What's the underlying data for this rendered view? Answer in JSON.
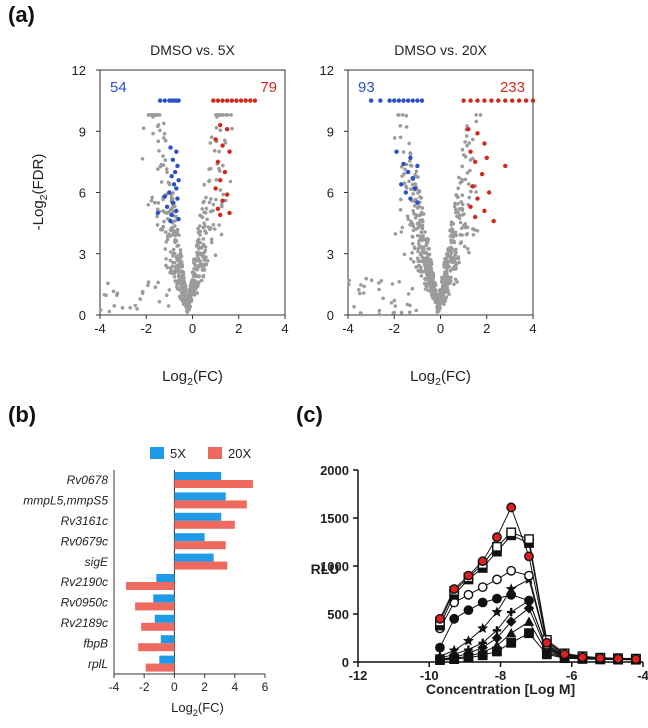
{
  "panels": {
    "a": "(a)",
    "b": "(b)",
    "c": "(c)"
  },
  "chart_data": [
    {
      "type": "scatter",
      "panel": "a",
      "title": "DMSO vs. 5X",
      "xlabel": "Log2(FC)",
      "ylabel": "-Log2(FDR)",
      "xlim": [
        -4,
        4
      ],
      "ylim": [
        0,
        12
      ],
      "xticks": [
        "-4",
        "-2",
        "0",
        "2",
        "4"
      ],
      "yticks": [
        "0",
        "3",
        "6",
        "9",
        "12"
      ],
      "down_count": "54",
      "up_count": "79",
      "colors": {
        "down": "#2b50c8",
        "up": "#d0291c",
        "ns": "#9b9b9b"
      },
      "down_points": [
        [
          -1.4,
          10.5
        ],
        [
          -1.2,
          10.5
        ],
        [
          -1.0,
          10.5
        ],
        [
          -0.9,
          10.5
        ],
        [
          -0.8,
          10.5
        ],
        [
          -0.7,
          10.5
        ],
        [
          -0.6,
          10.5
        ],
        [
          -0.95,
          8.2
        ],
        [
          -0.7,
          8.0
        ],
        [
          -0.85,
          7.6
        ],
        [
          -0.65,
          7.3
        ],
        [
          -0.75,
          7.0
        ],
        [
          -0.9,
          6.8
        ],
        [
          -0.6,
          6.6
        ],
        [
          -0.8,
          6.4
        ],
        [
          -0.7,
          6.2
        ],
        [
          -1.0,
          6.0
        ],
        [
          -1.2,
          5.8
        ],
        [
          -0.65,
          5.7
        ],
        [
          -0.85,
          5.5
        ],
        [
          -1.1,
          5.3
        ],
        [
          -0.7,
          5.1
        ],
        [
          -1.5,
          5.0
        ],
        [
          -0.9,
          4.9
        ],
        [
          -0.6,
          4.7
        ],
        [
          -0.95,
          4.6
        ]
      ],
      "up_points": [
        [
          0.9,
          10.5
        ],
        [
          1.1,
          10.5
        ],
        [
          1.3,
          10.5
        ],
        [
          1.5,
          10.5
        ],
        [
          1.7,
          10.5
        ],
        [
          1.9,
          10.5
        ],
        [
          2.1,
          10.5
        ],
        [
          2.3,
          10.5
        ],
        [
          2.5,
          10.5
        ],
        [
          2.7,
          10.5
        ],
        [
          1.2,
          9.3
        ],
        [
          1.5,
          9.1
        ],
        [
          1.0,
          8.6
        ],
        [
          1.3,
          8.3
        ],
        [
          1.6,
          8.0
        ],
        [
          1.1,
          7.5
        ],
        [
          1.4,
          7.0
        ],
        [
          1.2,
          6.6
        ],
        [
          1.0,
          6.2
        ],
        [
          1.5,
          5.9
        ],
        [
          1.3,
          5.6
        ],
        [
          1.1,
          5.2
        ],
        [
          1.6,
          5.0
        ],
        [
          1.2,
          4.9
        ]
      ],
      "ns_shape": {
        "x0": -0.2,
        "k": 3.6,
        "vmax": 9.8,
        "seed": 7,
        "n": 520
      }
    },
    {
      "type": "scatter",
      "panel": "a",
      "title": "DMSO vs. 20X",
      "xlabel": "Log2(FC)",
      "ylabel": "",
      "xlim": [
        -4,
        4
      ],
      "ylim": [
        0,
        12
      ],
      "xticks": [
        "-4",
        "-2",
        "0",
        "2",
        "4"
      ],
      "yticks": [
        "0",
        "3",
        "6",
        "9",
        "12"
      ],
      "down_count": "93",
      "up_count": "233",
      "colors": {
        "down": "#2b50c8",
        "up": "#d0291c",
        "ns": "#9b9b9b"
      },
      "down_points": [
        [
          -3.0,
          10.5
        ],
        [
          -2.6,
          10.5
        ],
        [
          -2.2,
          10.5
        ],
        [
          -2.0,
          10.5
        ],
        [
          -1.8,
          10.5
        ],
        [
          -1.6,
          10.5
        ],
        [
          -1.4,
          10.5
        ],
        [
          -1.2,
          10.5
        ],
        [
          -1.0,
          10.5
        ],
        [
          -0.8,
          10.5
        ],
        [
          -1.9,
          8.0
        ],
        [
          -1.3,
          7.7
        ],
        [
          -1.6,
          7.4
        ],
        [
          -1.0,
          7.3
        ],
        [
          -1.4,
          7.0
        ],
        [
          -1.2,
          6.7
        ],
        [
          -1.7,
          6.4
        ],
        [
          -1.1,
          6.2
        ],
        [
          -1.5,
          6.0
        ],
        [
          -1.3,
          5.7
        ],
        [
          -1.0,
          5.5
        ]
      ],
      "up_points": [
        [
          1.0,
          10.5
        ],
        [
          1.3,
          10.5
        ],
        [
          1.6,
          10.5
        ],
        [
          1.9,
          10.5
        ],
        [
          2.2,
          10.5
        ],
        [
          2.5,
          10.5
        ],
        [
          2.8,
          10.5
        ],
        [
          3.1,
          10.5
        ],
        [
          3.4,
          10.5
        ],
        [
          3.7,
          10.5
        ],
        [
          4.0,
          10.5
        ],
        [
          1.2,
          9.1
        ],
        [
          1.6,
          8.9
        ],
        [
          1.9,
          8.4
        ],
        [
          1.3,
          8.0
        ],
        [
          2.0,
          7.7
        ],
        [
          2.8,
          7.3
        ],
        [
          1.5,
          7.5
        ],
        [
          1.8,
          6.9
        ],
        [
          1.4,
          6.3
        ],
        [
          2.1,
          6.0
        ],
        [
          1.6,
          5.7
        ],
        [
          1.3,
          5.3
        ],
        [
          1.9,
          5.1
        ],
        [
          1.5,
          4.8
        ],
        [
          2.3,
          4.6
        ]
      ],
      "ns_shape": {
        "x0": -0.1,
        "k": 3.0,
        "vmax": 9.8,
        "seed": 13,
        "n": 620
      }
    },
    {
      "type": "bar",
      "orientation": "horizontal",
      "panel": "b",
      "xlabel": "Log2(FC)",
      "xlim": [
        -4,
        6
      ],
      "xticks": [
        "-4",
        "-2",
        "0",
        "2",
        "4",
        "6"
      ],
      "categories": [
        "Rv0678",
        "mmpL5,mmpS5",
        "Rv3161c",
        "Rv0679c",
        "sigE",
        "Rv2190c",
        "Rv0950c",
        "Rv2189c",
        "fbpB",
        "rplL"
      ],
      "series": [
        {
          "name": "5X",
          "color": "#1e9ae6",
          "values": [
            3.1,
            3.4,
            3.1,
            2.0,
            2.6,
            -1.2,
            -1.4,
            -1.3,
            -0.9,
            -1.0
          ]
        },
        {
          "name": "20X",
          "color": "#ee6a5e",
          "values": [
            5.2,
            4.8,
            4.0,
            3.4,
            3.5,
            -3.2,
            -2.6,
            -2.2,
            -2.4,
            -1.9
          ]
        }
      ]
    },
    {
      "type": "line",
      "panel": "c",
      "xlabel": "Concentration [Log M]",
      "ylabel": "RLU",
      "xlim": [
        -12,
        -4
      ],
      "ylim": [
        0,
        2000
      ],
      "xticks": [
        "-12",
        "-10",
        "-8",
        "-6",
        "-4"
      ],
      "yticks": [
        "0",
        "500",
        "1000",
        "1500",
        "2000"
      ],
      "x": [
        -9.7,
        -9.3,
        -8.9,
        -8.5,
        -8.1,
        -7.7,
        -7.2,
        -6.7,
        -6.2,
        -5.7,
        -5.2,
        -4.7,
        -4.2
      ],
      "series": [
        {
          "name": "red-circle",
          "marker": "circle",
          "fill": "#e02020",
          "values": [
            450,
            760,
            900,
            1050,
            1300,
            1610,
            1100,
            200,
            80,
            50,
            40,
            35,
            30
          ]
        },
        {
          "name": "open-square",
          "marker": "square",
          "fill": "#ffffff",
          "values": [
            420,
            740,
            880,
            1020,
            1200,
            1350,
            1280,
            230,
            90,
            60,
            45,
            40,
            35
          ]
        },
        {
          "name": "black-square",
          "marker": "square",
          "fill": "#111111",
          "values": [
            380,
            700,
            860,
            980,
            1150,
            1320,
            1240,
            210,
            80,
            55,
            40,
            35,
            30
          ]
        },
        {
          "name": "open-circle",
          "marker": "circle",
          "fill": "#ffffff",
          "values": [
            350,
            620,
            700,
            780,
            860,
            950,
            900,
            180,
            70,
            50,
            40,
            35,
            30
          ]
        },
        {
          "name": "black-circle",
          "marker": "circle",
          "fill": "#111111",
          "values": [
            150,
            450,
            540,
            620,
            660,
            700,
            640,
            150,
            60,
            45,
            35,
            30,
            30
          ]
        },
        {
          "name": "star",
          "marker": "star",
          "fill": "#111111",
          "values": [
            60,
            120,
            220,
            350,
            520,
            760,
            860,
            170,
            60,
            45,
            35,
            30,
            28
          ]
        },
        {
          "name": "plus",
          "marker": "plus",
          "fill": "#111111",
          "values": [
            40,
            80,
            130,
            200,
            330,
            520,
            640,
            140,
            55,
            40,
            32,
            30,
            28
          ]
        },
        {
          "name": "diamond",
          "marker": "diamond",
          "fill": "#111111",
          "values": [
            30,
            50,
            90,
            150,
            250,
            420,
            560,
            120,
            50,
            38,
            30,
            28,
            26
          ]
        },
        {
          "name": "triangle",
          "marker": "triangle",
          "fill": "#111111",
          "values": [
            25,
            40,
            60,
            100,
            170,
            300,
            420,
            100,
            45,
            35,
            28,
            26,
            25
          ]
        },
        {
          "name": "small-square",
          "marker": "square",
          "fill": "#111111",
          "values": [
            20,
            30,
            45,
            70,
            110,
            200,
            300,
            80,
            40,
            32,
            27,
            25,
            24
          ]
        }
      ]
    }
  ]
}
